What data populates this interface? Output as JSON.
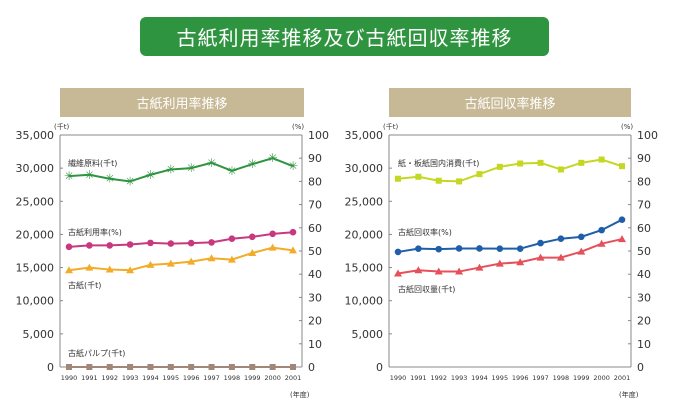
{
  "title": "古紙利用率推移及び古紙回収率推移",
  "chart_data": [
    {
      "type": "line",
      "title": "古紙利用率推移",
      "left_unit": "(千t)",
      "right_unit": "(%)",
      "x_unit": "(年度)",
      "categories": [
        "1990",
        "1991",
        "1992",
        "1993",
        "1994",
        "1995",
        "1996",
        "1997",
        "1998",
        "1999",
        "2000",
        "2001"
      ],
      "ylim_left": [
        0,
        35000
      ],
      "yticks_left": [
        "0",
        "5,000",
        "10,000",
        "15,000",
        "20,000",
        "25,000",
        "30,000",
        "35,000"
      ],
      "ylim_right": [
        0,
        100
      ],
      "yticks_right": [
        "0",
        "10",
        "20",
        "30",
        "40",
        "50",
        "60",
        "70",
        "80",
        "90",
        "100"
      ],
      "grid": false,
      "series": [
        {
          "name": "繊維原料(千t)",
          "axis": "left",
          "marker": "star",
          "color": "#2f9440",
          "values": [
            28800,
            29000,
            28400,
            28000,
            29000,
            29800,
            30000,
            30800,
            29600,
            30600,
            31500,
            30300
          ]
        },
        {
          "name": "古紙利用率(%)",
          "axis": "right",
          "marker": "circle",
          "color": "#c8387f",
          "values": [
            51.8,
            52.4,
            52.4,
            52.8,
            53.5,
            53.2,
            53.4,
            53.7,
            55.3,
            56.1,
            57.4,
            58.1
          ]
        },
        {
          "name": "古紙(千t)",
          "axis": "left",
          "marker": "triangle",
          "color": "#f2ac2a",
          "values": [
            14600,
            15000,
            14700,
            14600,
            15400,
            15600,
            15900,
            16400,
            16200,
            17200,
            18000,
            17600
          ]
        },
        {
          "name": "古紙パルプ(千t)",
          "axis": "left",
          "marker": "square",
          "color": "#a0877a",
          "values": [
            0,
            0,
            0,
            0,
            0,
            0,
            0,
            0,
            0,
            0,
            0,
            0
          ]
        }
      ]
    },
    {
      "type": "line",
      "title": "古紙回収率推移",
      "left_unit": "(千t)",
      "right_unit": "(%)",
      "x_unit": "(年度)",
      "categories": [
        "1990",
        "1991",
        "1992",
        "1993",
        "1994",
        "1995",
        "1996",
        "1997",
        "1998",
        "1999",
        "2000",
        "2001"
      ],
      "ylim_left": [
        0,
        35000
      ],
      "yticks_left": [
        "0",
        "5,000",
        "10,000",
        "15,000",
        "20,000",
        "25,000",
        "30,000",
        "35,000"
      ],
      "ylim_right": [
        0,
        100
      ],
      "yticks_right": [
        "0",
        "10",
        "20",
        "30",
        "40",
        "50",
        "60",
        "70",
        "80",
        "90",
        "100"
      ],
      "grid": false,
      "series": [
        {
          "name": "紙・板紙国内消費(千t)",
          "axis": "left",
          "marker": "square",
          "color": "#c4d722",
          "values": [
            28400,
            28700,
            28100,
            28000,
            29100,
            30200,
            30700,
            30800,
            29800,
            30800,
            31300,
            30300
          ]
        },
        {
          "name": "古紙回収率(%)",
          "axis": "right",
          "marker": "circle",
          "color": "#1f5ea8",
          "values": [
            49.6,
            51.0,
            50.8,
            51.1,
            51.1,
            51.0,
            51.0,
            53.4,
            55.3,
            56.1,
            59.0,
            63.5
          ]
        },
        {
          "name": "古紙回収量(千t)",
          "axis": "left",
          "marker": "triangle",
          "color": "#e5505a",
          "values": [
            14100,
            14600,
            14400,
            14400,
            15000,
            15600,
            15800,
            16500,
            16500,
            17400,
            18600,
            19300
          ]
        }
      ]
    }
  ]
}
